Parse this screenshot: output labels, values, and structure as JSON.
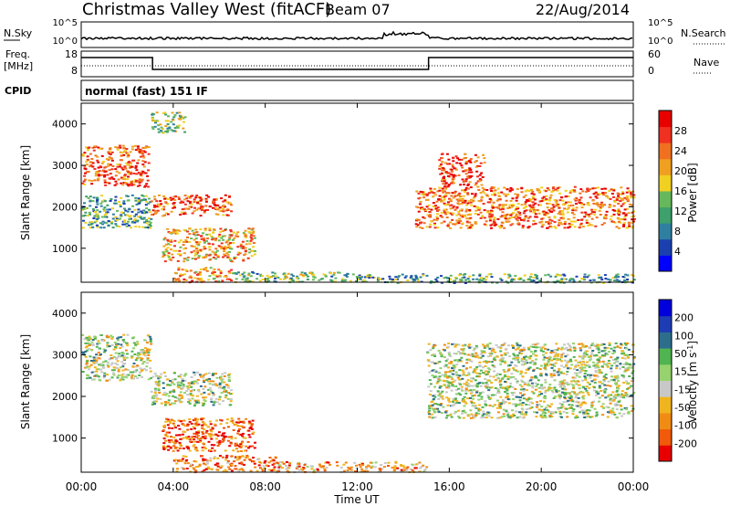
{
  "header": {
    "title": "Christmas Valley West (fitACF)",
    "beam": "Beam 07",
    "date": "22/Aug/2014"
  },
  "top_panel": {
    "left_label": "N.Sky",
    "left_ticks": [
      "10^5",
      "10^0"
    ],
    "right_label": "N.Search",
    "right_ticks": [
      "10^5",
      "10^0"
    ]
  },
  "freq_panel": {
    "left_label_1": "Freq.",
    "left_label_2": "[MHz]",
    "left_ticks": [
      "18",
      "8"
    ],
    "right_label": "Nave",
    "right_ticks": [
      "60",
      "0"
    ]
  },
  "cpid_panel": {
    "label": "CPID",
    "text": "normal (fast) 151 IF"
  },
  "x_axis": {
    "label": "Time UT",
    "ticks": [
      "00:00",
      "04:00",
      "08:00",
      "12:00",
      "16:00",
      "20:00",
      "00:00"
    ]
  },
  "colors": {
    "power": [
      "#0000ff",
      "#1a40b0",
      "#2f7fa0",
      "#3ea06a",
      "#67b85c",
      "#f0d020",
      "#f0a020",
      "#f07020",
      "#f03020",
      "#e80000"
    ],
    "velocity": [
      "#e80000",
      "#f05a0a",
      "#f08c14",
      "#f0b41e",
      "#c8c8c8",
      "#96d26e",
      "#50b450",
      "#2d6e8c",
      "#1e3cb4",
      "#0000dc"
    ]
  },
  "chart_data": [
    {
      "type": "heatmap",
      "title": "",
      "xlabel": "Time UT",
      "ylabel": "Slant Range [km]",
      "xlim": [
        0,
        24
      ],
      "ylim": [
        180,
        4500
      ],
      "yticks": [
        "1000",
        "2000",
        "3000",
        "4000"
      ],
      "colorbar": {
        "label": "Power [dB]",
        "range": [
          0,
          32
        ],
        "ticks": [
          "4",
          "8",
          "12",
          "16",
          "20",
          "24",
          "28"
        ]
      },
      "regions": [
        {
          "t0": 0.0,
          "t1": 2.9,
          "r0": 2500,
          "r1": 3500,
          "level": 0.8
        },
        {
          "t0": 0.0,
          "t1": 3.0,
          "r0": 1500,
          "r1": 2300,
          "level": 0.35
        },
        {
          "t0": 3.0,
          "t1": 6.5,
          "r0": 1800,
          "r1": 2300,
          "level": 0.8
        },
        {
          "t0": 3.0,
          "t1": 4.5,
          "r0": 3800,
          "r1": 4300,
          "level": 0.45
        },
        {
          "t0": 3.5,
          "t1": 7.5,
          "r0": 700,
          "r1": 1500,
          "level": 0.65
        },
        {
          "t0": 4.0,
          "t1": 6.5,
          "r0": 200,
          "r1": 550,
          "level": 0.7
        },
        {
          "t0": 6.5,
          "t1": 12.0,
          "r0": 200,
          "r1": 450,
          "level": 0.4
        },
        {
          "t0": 14.5,
          "t1": 24.0,
          "r0": 1500,
          "r1": 2500,
          "level": 0.75
        },
        {
          "t0": 15.5,
          "t1": 17.5,
          "r0": 2500,
          "r1": 3300,
          "level": 0.85
        },
        {
          "t0": 12.0,
          "t1": 24.0,
          "r0": 180,
          "r1": 400,
          "level": 0.35
        }
      ]
    },
    {
      "type": "heatmap",
      "title": "",
      "xlabel": "Time UT",
      "ylabel": "Slant Range [km]",
      "xlim": [
        0,
        24
      ],
      "ylim": [
        180,
        4500
      ],
      "yticks": [
        "1000",
        "2000",
        "3000",
        "4000"
      ],
      "colorbar": {
        "label": "Velocity [m s^-1]",
        "range": [
          -250,
          250
        ],
        "ticks": [
          "200",
          "100",
          "50",
          "15",
          "-15",
          "-50",
          "-100",
          "-200"
        ]
      },
      "regions": [
        {
          "t0": 0.0,
          "t1": 3.0,
          "r0": 2400,
          "r1": 3500,
          "level": 0.5
        },
        {
          "t0": 3.0,
          "t1": 6.5,
          "r0": 1800,
          "r1": 2600,
          "level": 0.5
        },
        {
          "t0": 3.5,
          "t1": 7.5,
          "r0": 700,
          "r1": 1500,
          "level": 0.15
        },
        {
          "t0": 4.0,
          "t1": 8.5,
          "r0": 200,
          "r1": 600,
          "level": 0.2
        },
        {
          "t0": 8.5,
          "t1": 15.0,
          "r0": 200,
          "r1": 450,
          "level": 0.3
        },
        {
          "t0": 15.0,
          "t1": 24.0,
          "r0": 1500,
          "r1": 3300,
          "level": 0.5
        }
      ]
    }
  ]
}
